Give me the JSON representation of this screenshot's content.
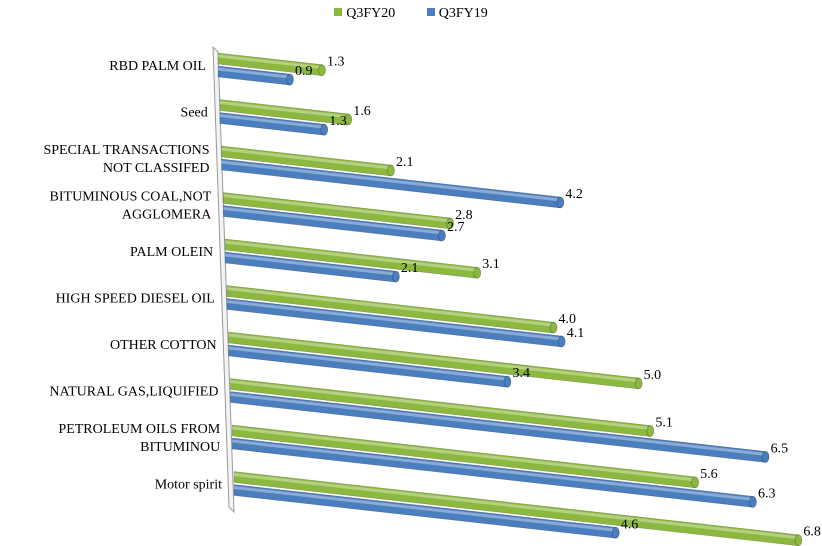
{
  "colors": {
    "Q3FY20": "#8db83f",
    "Q3FY19": "#4a7ebf"
  },
  "chart_data": {
    "type": "bar",
    "orientation": "horizontal",
    "legend_position": "top",
    "grid": false,
    "categories": [
      "RBD PALM OIL",
      "Seed",
      "SPECIAL TRANSACTIONS NOT CLASSIFED",
      "BITUMINOUS COAL,NOT AGGLOMERA",
      "PALM OLEIN",
      "HIGH SPEED DIESEL OIL",
      "OTHER COTTON",
      "NATURAL GAS,LIQUIFIED",
      "PETROLEUM OILS FROM BITUMINOU",
      "Motor spirit"
    ],
    "category_lines": [
      [
        "RBD PALM OIL"
      ],
      [
        "Seed"
      ],
      [
        "SPECIAL TRANSACTIONS",
        "NOT CLASSIFED"
      ],
      [
        "BITUMINOUS COAL,NOT",
        "AGGLOMERA"
      ],
      [
        "PALM OLEIN"
      ],
      [
        "HIGH SPEED DIESEL OIL"
      ],
      [
        "OTHER COTTON"
      ],
      [
        "NATURAL GAS,LIQUIFIED"
      ],
      [
        "PETROLEUM OILS FROM",
        "BITUMINOU"
      ],
      [
        "Motor spirit"
      ]
    ],
    "series": [
      {
        "name": "Q3FY20",
        "values": [
          1.3,
          1.6,
          2.1,
          2.8,
          3.1,
          4.0,
          5.0,
          5.1,
          5.6,
          6.8
        ],
        "labels": [
          "1.3",
          "1.6",
          "2.1",
          "2.8",
          "3.1",
          "4.0",
          "5.0",
          "5.1",
          "5.6",
          "6.8"
        ]
      },
      {
        "name": "Q3FY19",
        "values": [
          0.9,
          1.3,
          4.2,
          2.7,
          2.1,
          4.1,
          3.4,
          6.5,
          6.3,
          4.6
        ],
        "labels": [
          "0.9",
          "1.3",
          "4.2",
          "2.7",
          "2.1",
          "4.1",
          "3.4",
          "6.5",
          "6.3",
          "4.6"
        ]
      }
    ]
  }
}
